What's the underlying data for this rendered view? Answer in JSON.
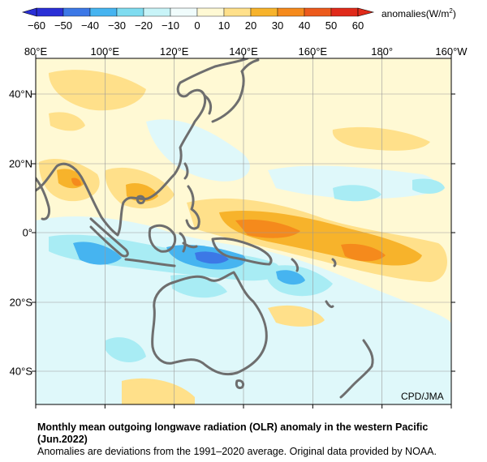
{
  "legend": {
    "ticks": [
      "−60",
      "−50",
      "−40",
      "−30",
      "−20",
      "−10",
      "0",
      "10",
      "20",
      "30",
      "40",
      "50",
      "60"
    ],
    "colors": [
      "#2a2fd6",
      "#3c78e6",
      "#46b4f0",
      "#7fdcf0",
      "#c8f4f8",
      "#f0fcfc",
      "#fff9d4",
      "#ffe08a",
      "#f7b32b",
      "#f58a1c",
      "#ec5a1c",
      "#e02a1a"
    ],
    "unit_prefix": "anomalies(W/m",
    "unit_exp": "2",
    "unit_suffix": ")"
  },
  "axes": {
    "lon_labels": [
      "80°E",
      "100°E",
      "120°E",
      "140°E",
      "160°E",
      "180°",
      "160°W"
    ],
    "lat_labels": [
      "40°N",
      "20°N",
      "0°",
      "20°S",
      "40°S"
    ]
  },
  "credit": "CPD/JMA",
  "title": "Monthly mean outgoing longwave radiation (OLR) anomaly in the western Pacific (Jun.2022)",
  "subtitle": "Anomalies are deviations from the 1991–2020 average. Original data provided by NOAA.",
  "colors": {
    "background": "#fff9d4",
    "coastline": "#6e6e6e",
    "grid": "#9a9a9a"
  }
}
